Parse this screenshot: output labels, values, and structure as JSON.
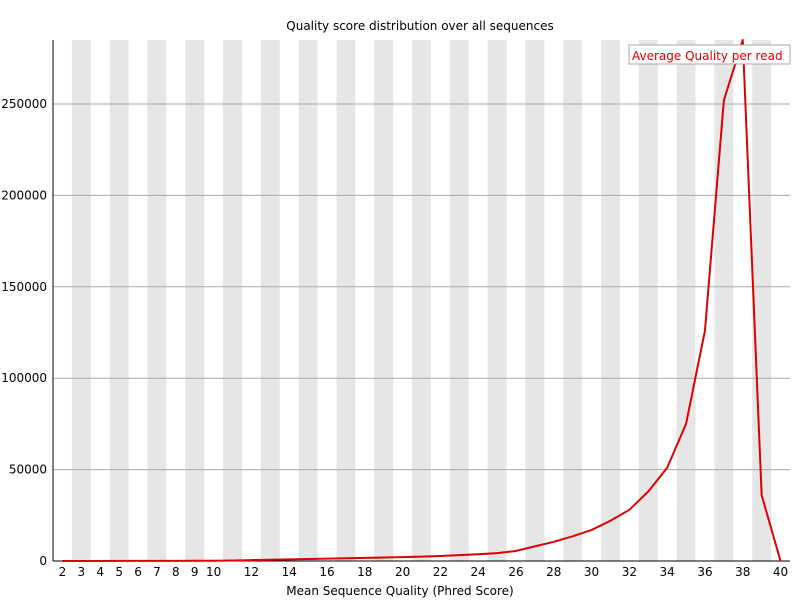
{
  "chart_data": {
    "type": "line",
    "title": "Quality score distribution over all sequences",
    "xlabel": "Mean Sequence Quality (Phred Score)",
    "ylabel": "",
    "xlim": [
      1.5,
      40.5
    ],
    "ylim": [
      0,
      285000
    ],
    "x_tick_labels": [
      "2",
      "3",
      "4",
      "5",
      "6",
      "7",
      "8",
      "9",
      "10",
      "12",
      "14",
      "16",
      "18",
      "20",
      "22",
      "24",
      "26",
      "28",
      "30",
      "32",
      "34",
      "36",
      "38",
      "40"
    ],
    "y_ticks": [
      0,
      50000,
      100000,
      150000,
      200000,
      250000
    ],
    "y_tick_labels": [
      "0",
      "50000",
      "100000",
      "150000",
      "200000",
      "250000"
    ],
    "grid": true,
    "legend_position": "top-right",
    "colors": {
      "line": "#dd0000",
      "band": "#e6e6e6",
      "gridline": "#aaaaaa",
      "legend_border": "#aaaaaa"
    },
    "series": [
      {
        "name": "Average Quality per read",
        "x": [
          2,
          3,
          4,
          5,
          6,
          7,
          8,
          9,
          10,
          11,
          12,
          13,
          14,
          15,
          16,
          17,
          18,
          19,
          20,
          21,
          22,
          23,
          24,
          25,
          26,
          27,
          28,
          29,
          30,
          31,
          32,
          33,
          34,
          35,
          36,
          37,
          38,
          39,
          40
        ],
        "y": [
          0,
          10,
          20,
          40,
          60,
          80,
          100,
          120,
          150,
          300,
          500,
          700,
          900,
          1100,
          1300,
          1500,
          1700,
          1900,
          2100,
          2400,
          2700,
          3200,
          3700,
          4300,
          5500,
          8000,
          10500,
          13500,
          17000,
          22000,
          28000,
          38000,
          51000,
          75000,
          126000,
          252000,
          285000,
          36000,
          0
        ]
      }
    ]
  }
}
